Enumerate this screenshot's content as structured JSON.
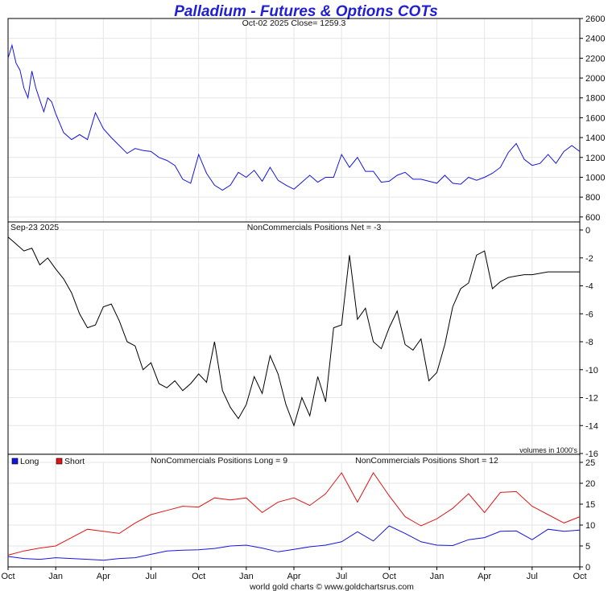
{
  "title": "Palladium - Futures & Options COTs",
  "footer": "world gold charts © www.goldchartsrus.com",
  "chart_data": [
    {
      "type": "line",
      "panel": "price",
      "subtitle": "Oct-02  2025   Close= 1259.3",
      "ylim": [
        550,
        2600
      ],
      "yticks": [
        600,
        800,
        1000,
        1200,
        1400,
        1600,
        1800,
        2000,
        2200,
        2400,
        2600
      ],
      "color": "#1515e0",
      "x": [
        0,
        0.25,
        0.5,
        0.75,
        1,
        1.25,
        1.5,
        1.75,
        2,
        2.25,
        2.5,
        2.75,
        3,
        3.5,
        4,
        4.5,
        5,
        5.5,
        6,
        6.5,
        7,
        7.5,
        8,
        8.5,
        9,
        9.5,
        10,
        10.5,
        11,
        11.5,
        12,
        12.5,
        13,
        13.5,
        14,
        14.5,
        15,
        15.5,
        16,
        16.5,
        17,
        17.5,
        18,
        18.5,
        19,
        19.5,
        20,
        20.5,
        21,
        21.5,
        22,
        22.5,
        23,
        23.5,
        24,
        24.5,
        25,
        25.5,
        26,
        26.5,
        27,
        27.5,
        28,
        28.5,
        29,
        29.5,
        30,
        30.5,
        31,
        31.5,
        32,
        32.5,
        33,
        33.5,
        34,
        34.5,
        35,
        35.5,
        36
      ],
      "values": [
        2200,
        2330,
        2150,
        2080,
        1900,
        1800,
        2070,
        1900,
        1780,
        1660,
        1800,
        1760,
        1640,
        1450,
        1380,
        1430,
        1380,
        1650,
        1490,
        1400,
        1320,
        1240,
        1290,
        1270,
        1260,
        1200,
        1170,
        1120,
        980,
        940,
        1230,
        1040,
        920,
        870,
        920,
        1050,
        1000,
        1070,
        960,
        1100,
        970,
        920,
        880,
        950,
        1020,
        950,
        1000,
        1000,
        1230,
        1100,
        1200,
        1060,
        1060,
        950,
        960,
        1020,
        1050,
        980,
        980,
        960,
        940,
        1020,
        940,
        930,
        1000,
        970,
        1000,
        1040,
        1100,
        1250,
        1340,
        1180,
        1120,
        1140,
        1230,
        1140,
        1260,
        1320,
        1259
      ]
    },
    {
      "type": "line",
      "panel": "net",
      "date_label": "Sep-23  2025",
      "subtitle": "NonCommercials Positions Net = -3",
      "note": "volumes in 1000's",
      "ylim": [
        -16,
        0
      ],
      "yticks": [
        0,
        -2,
        -4,
        -6,
        -8,
        -10,
        -12,
        -14,
        -16
      ],
      "color": "#000000",
      "x": [
        0,
        0.5,
        1,
        1.5,
        2,
        2.5,
        3,
        3.5,
        4,
        4.5,
        5,
        5.5,
        6,
        6.5,
        7,
        7.5,
        8,
        8.5,
        9,
        9.5,
        10,
        10.5,
        11,
        11.5,
        12,
        12.5,
        13,
        13.5,
        14,
        14.5,
        15,
        15.5,
        16,
        16.5,
        17,
        17.5,
        18,
        18.5,
        19,
        19.5,
        20,
        20.5,
        21,
        21.5,
        22,
        22.5,
        23,
        23.5,
        24,
        24.5,
        25,
        25.5,
        26,
        26.5,
        27,
        27.5,
        28,
        28.5,
        29,
        29.5,
        30,
        30.5,
        31,
        31.5,
        32,
        32.5,
        33,
        33.5,
        34,
        34.5,
        35,
        35.5,
        36
      ],
      "values": [
        -0.5,
        -1,
        -1.5,
        -1.3,
        -2.5,
        -2,
        -2.8,
        -3.5,
        -4.5,
        -6,
        -7,
        -6.8,
        -5.5,
        -5.3,
        -6.5,
        -8,
        -8.3,
        -10,
        -9.5,
        -11,
        -11.3,
        -10.8,
        -11.5,
        -11,
        -10.3,
        -10.9,
        -8,
        -11.5,
        -12.7,
        -13.5,
        -12.5,
        -10.5,
        -11.7,
        -9,
        -10.3,
        -12.5,
        -14,
        -12,
        -13.3,
        -10.5,
        -12.3,
        -7,
        -6.8,
        -1.8,
        -6.4,
        -5.6,
        -8,
        -8.5,
        -7,
        -5.8,
        -8.2,
        -8.6,
        -7.8,
        -10.8,
        -10.2,
        -8.2,
        -5.5,
        -4.2,
        -3.8,
        -1.8,
        -1.5,
        -4.2,
        -3.7,
        -3.4,
        -3.3,
        -3.2,
        -3.2,
        -3.1,
        -3.0,
        -3.0,
        -3.0,
        -3.0,
        -3.0
      ]
    },
    {
      "type": "line",
      "panel": "long_short",
      "title_long": "NonCommercials Positions Long = 9",
      "title_short": "NonCommercials Positions Short = 12",
      "legend": [
        "Long",
        "Short"
      ],
      "ylim": [
        0,
        25
      ],
      "yticks": [
        0,
        5,
        10,
        15,
        20,
        25
      ],
      "x_tick_labels": [
        "Oct",
        "Jan",
        "Apr",
        "Jul",
        "Oct",
        "Jan",
        "Apr",
        "Jul",
        "Oct",
        "Jan",
        "Apr",
        "Jul",
        "Oct"
      ],
      "series": [
        {
          "name": "Long",
          "color": "#1515e0",
          "x": [
            0,
            1,
            2,
            3,
            4,
            5,
            6,
            7,
            8,
            9,
            10,
            11,
            12,
            13,
            14,
            15,
            16,
            17,
            18,
            19,
            20,
            21,
            22,
            23,
            24,
            25,
            26,
            27,
            28,
            29,
            30,
            31,
            32,
            33,
            34,
            35,
            36
          ],
          "values": [
            2.5,
            2.0,
            1.8,
            2.2,
            2.0,
            1.8,
            1.6,
            2.0,
            2.2,
            3.0,
            3.8,
            4.0,
            4.1,
            4.4,
            5.0,
            5.2,
            4.5,
            3.6,
            4.2,
            4.8,
            5.2,
            6.0,
            8.4,
            6.2,
            9.8,
            8.0,
            6.0,
            5.2,
            5.1,
            6.5,
            7.0,
            8.5,
            8.6,
            6.5,
            9.0,
            8.5,
            8.8
          ]
        },
        {
          "name": "Short",
          "color": "#e01515",
          "x": [
            0,
            1,
            2,
            3,
            4,
            5,
            6,
            7,
            8,
            9,
            10,
            11,
            12,
            13,
            14,
            15,
            16,
            17,
            18,
            19,
            20,
            21,
            22,
            23,
            24,
            25,
            26,
            27,
            28,
            29,
            30,
            31,
            32,
            33,
            34,
            35,
            36
          ],
          "values": [
            2.8,
            3.8,
            4.5,
            5.0,
            7.0,
            9.0,
            8.5,
            8.0,
            10.5,
            12.5,
            13.5,
            14.5,
            14.3,
            16.5,
            16.0,
            16.5,
            13.0,
            15.5,
            16.5,
            14.7,
            17.5,
            22.5,
            15.5,
            22.5,
            17.0,
            12.0,
            9.8,
            11.5,
            14.0,
            17.5,
            13.0,
            17.8,
            18.0,
            14.5,
            12.5,
            10.5,
            12.0
          ]
        }
      ]
    }
  ]
}
